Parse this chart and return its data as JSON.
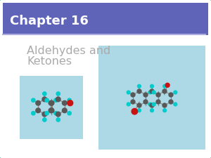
{
  "title": "Chapter 16",
  "subtitle_line1": "Aldehydes and",
  "subtitle_line2": "Ketones",
  "header_color": "#6064b8",
  "header_text_color": "#ffffff",
  "bg_color": "#f5f5f5",
  "slide_bg": "#ffffff",
  "mol_bg": "#add8e6",
  "carbon_color": "#585858",
  "hydrogen_color": "#00cccc",
  "oxygen_color": "#cc1111",
  "bond_color": "#888888",
  "subtitle_color": "#aaaaaa",
  "border_color": "#4daa88",
  "header_line_color": "#aaaadd"
}
